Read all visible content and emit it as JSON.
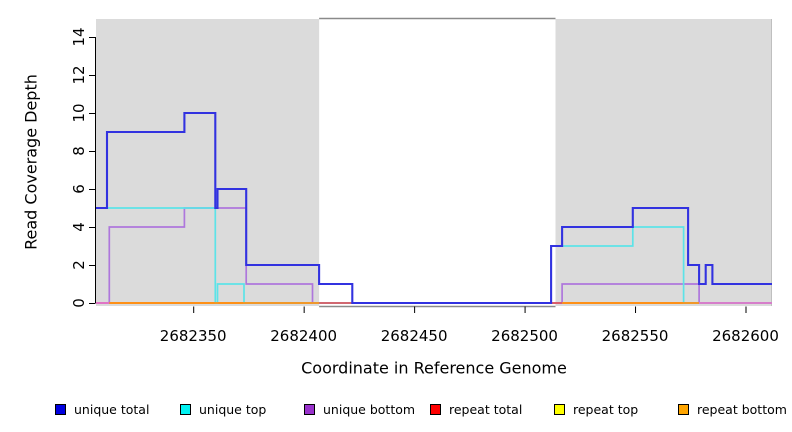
{
  "chart_data": {
    "type": "line",
    "subtype": "step-coverage",
    "title": "",
    "xlabel": "Coordinate in Reference Genome",
    "ylabel": "Read Coverage Depth",
    "xlim": [
      2682306,
      2682612
    ],
    "ylim": [
      0,
      15
    ],
    "x_ticks": [
      2682350,
      2682400,
      2682450,
      2682500,
      2682550,
      2682600
    ],
    "y_ticks": [
      0,
      2,
      4,
      6,
      8,
      10,
      12,
      14
    ],
    "grid": false,
    "legend_position": "bottom",
    "shaded_regions": [
      {
        "x1": 2682306,
        "x2": 2682407,
        "color": "#dbdbdb"
      },
      {
        "x1": 2682514,
        "x2": 2682612,
        "color": "#dbdbdb"
      }
    ],
    "unshaded_region": {
      "x1": 2682407,
      "x2": 2682514
    },
    "series": [
      {
        "name": "repeat top",
        "color": "#FFFF00",
        "line_color": "#f2e300",
        "width": 1.4,
        "steps": [
          [
            2682306,
            0
          ],
          [
            2682612,
            0
          ]
        ]
      },
      {
        "name": "repeat total",
        "color": "#FF0000",
        "line_color": "#DD5A62",
        "width": 1.4,
        "steps": [
          [
            2682306,
            0
          ],
          [
            2682612,
            0
          ]
        ]
      },
      {
        "name": "repeat bottom",
        "color": "#FFA500",
        "line_color": "#FF9015",
        "width": 1.7,
        "steps": [
          [
            2682306,
            0
          ],
          [
            2682612,
            0
          ]
        ]
      },
      {
        "name": "unique bottom",
        "color": "#9932CC",
        "line_color": "#AE77DC",
        "width": 1.7,
        "steps": [
          [
            2682306,
            0
          ],
          [
            2682312,
            4
          ],
          [
            2682346,
            5
          ],
          [
            2682374,
            1
          ],
          [
            2682404,
            0
          ],
          [
            2682517,
            1
          ],
          [
            2682579,
            0
          ],
          [
            2682612,
            0
          ]
        ]
      },
      {
        "name": "unique top",
        "color": "#00F2F2",
        "line_color": "#5CE3E8",
        "width": 1.7,
        "steps": [
          [
            2682306,
            5
          ],
          [
            2682360,
            0
          ],
          [
            2682361,
            1
          ],
          [
            2682373,
            0
          ],
          [
            2682512,
            3
          ],
          [
            2682549,
            4
          ],
          [
            2682572,
            0
          ],
          [
            2682612,
            0
          ]
        ]
      },
      {
        "name": "unique total",
        "color": "#0000E0",
        "line_color": "#3232E0",
        "width": 2.1,
        "steps": [
          [
            2682306,
            5
          ],
          [
            2682311,
            9
          ],
          [
            2682346,
            10
          ],
          [
            2682360,
            5
          ],
          [
            2682361,
            6
          ],
          [
            2682374,
            2
          ],
          [
            2682407,
            1
          ],
          [
            2682422,
            0
          ],
          [
            2682512,
            3
          ],
          [
            2682517,
            4
          ],
          [
            2682549,
            5
          ],
          [
            2682574,
            2
          ],
          [
            2682579,
            1
          ],
          [
            2682582,
            2
          ],
          [
            2682585,
            1
          ],
          [
            2682612,
            1
          ]
        ]
      }
    ],
    "baseline_overlay_segments": [
      {
        "x1": 2682306,
        "x2": 2682312,
        "color": "#E473C8"
      },
      {
        "x1": 2682312,
        "x2": 2682407,
        "color": "#FF9015"
      },
      {
        "x1": 2682407,
        "x2": 2682422,
        "color": "#DD5A62"
      },
      {
        "x1": 2682512,
        "x2": 2682517,
        "color": "#DD5A62"
      },
      {
        "x1": 2682517,
        "x2": 2682579,
        "color": "#FF9015"
      },
      {
        "x1": 2682579,
        "x2": 2682612,
        "color": "#E473C8"
      }
    ]
  },
  "axes": {
    "x_title": "Coordinate in Reference Genome",
    "y_title": "Read Coverage Depth"
  },
  "legend": {
    "items": [
      {
        "label": "unique total",
        "color": "#0000E0"
      },
      {
        "label": "unique top",
        "color": "#00F2F2"
      },
      {
        "label": "unique bottom",
        "color": "#9932CC"
      },
      {
        "label": "repeat total",
        "color": "#FF0000"
      },
      {
        "label": "repeat top",
        "color": "#FFFF00"
      },
      {
        "label": "repeat bottom",
        "color": "#FFA500"
      }
    ],
    "item_x_positions": [
      55,
      180,
      304,
      430,
      554,
      678
    ]
  },
  "colors": {
    "background": "#ffffff",
    "shading": "#dbdbdb",
    "box_border": "#8a8a8a",
    "axis": "#000000"
  }
}
